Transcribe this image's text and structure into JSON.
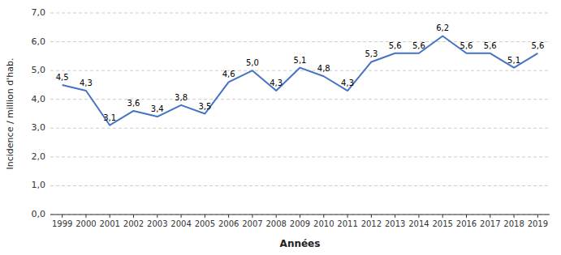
{
  "chart_data": {
    "type": "line",
    "xlabel": "Années",
    "ylabel": "Incidence / million d'hab.",
    "x": [
      1999,
      2000,
      2001,
      2002,
      2003,
      2004,
      2005,
      2006,
      2007,
      2008,
      2009,
      2010,
      2011,
      2012,
      2013,
      2014,
      2015,
      2016,
      2017,
      2018,
      2019
    ],
    "values": [
      4.5,
      4.3,
      3.1,
      3.6,
      3.4,
      3.8,
      3.5,
      4.6,
      5.0,
      4.3,
      5.1,
      4.8,
      4.3,
      5.3,
      5.6,
      5.6,
      6.2,
      5.6,
      5.6,
      5.1,
      5.6
    ],
    "value_labels": [
      "4,5",
      "4,3",
      "3,1",
      "3,6",
      "3,4",
      "3,8",
      "3,5",
      "4,6",
      "5,0",
      "4,3",
      "5,1",
      "4,8",
      "4,3",
      "5,3",
      "5,6",
      "5,6",
      "6,2",
      "5,6",
      "5,6",
      "5,1",
      "5,6"
    ],
    "data_labels": true,
    "color": "#4472C4",
    "xlim": [
      1998.5,
      2019.5
    ],
    "xticks": [
      1999,
      2000,
      2001,
      2002,
      2003,
      2004,
      2005,
      2006,
      2007,
      2008,
      2009,
      2010,
      2011,
      2012,
      2013,
      2014,
      2015,
      2016,
      2017,
      2018,
      2019
    ],
    "ylim": [
      0.0,
      7.0
    ],
    "yticks": [
      {
        "value": 0.0,
        "label": "0,0"
      },
      {
        "value": 1.0,
        "label": "1,0"
      },
      {
        "value": 2.0,
        "label": "2,0"
      },
      {
        "value": 3.0,
        "label": "3,0"
      },
      {
        "value": 4.0,
        "label": "4,0"
      },
      {
        "value": 5.0,
        "label": "5,0"
      },
      {
        "value": 6.0,
        "label": "6,0"
      },
      {
        "value": 7.0,
        "label": "7,0"
      }
    ],
    "grid": true
  }
}
